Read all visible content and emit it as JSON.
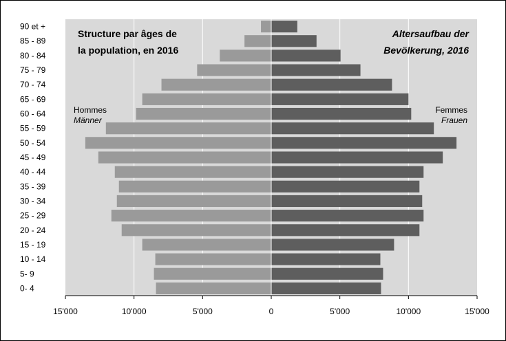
{
  "chart_data": {
    "type": "bar",
    "orientation": "horizontal-population-pyramid",
    "title_fr": "Structure par âges de la population, en 2016",
    "title_fr_lines": [
      "Structure par âges de",
      "la population, en 2016"
    ],
    "title_de": "Altersaufbau der Bevölkerung, 2016",
    "title_de_lines": [
      "Altersaufbau der",
      "Bevölkerung, 2016"
    ],
    "categories": [
      "0-  4",
      "5-  9",
      "10 - 14",
      "15 - 19",
      "20 - 24",
      "25 - 29",
      "30 - 34",
      "35 - 39",
      "40 - 44",
      "45 - 49",
      "50 - 54",
      "55 - 59",
      "60 - 64",
      "65 - 69",
      "70 - 74",
      "75 - 79",
      "80 - 84",
      "85 - 89",
      "90 et +"
    ],
    "series": [
      {
        "name": "Hommes / Männer",
        "label_fr": "Hommes",
        "label_de": "Männer",
        "color": "#9a9a9a",
        "values": [
          8400,
          8550,
          8450,
          9400,
          10900,
          11650,
          11250,
          11100,
          11400,
          12600,
          13550,
          12050,
          9850,
          9400,
          8000,
          5400,
          3750,
          1950,
          750
        ]
      },
      {
        "name": "Femmes / Frauen",
        "label_fr": "Femmes",
        "label_de": "Frauen",
        "color": "#5e5e5e",
        "values": [
          8000,
          8150,
          7950,
          8950,
          10800,
          11100,
          11000,
          10800,
          11100,
          12500,
          13500,
          11850,
          10200,
          10000,
          8800,
          6500,
          5050,
          3300,
          1900
        ]
      }
    ],
    "xlim": [
      -15000,
      15000
    ],
    "x_ticks": [
      -15000,
      -10000,
      -5000,
      0,
      5000,
      10000,
      15000
    ],
    "x_tick_labels": [
      "15'000",
      "10'000",
      "5'000",
      "0",
      "5'000",
      "10'000",
      "15'000"
    ],
    "grid": "vertical",
    "colors": {
      "plot_background": "#d9d9d9",
      "gridline": "#ffffff"
    }
  }
}
